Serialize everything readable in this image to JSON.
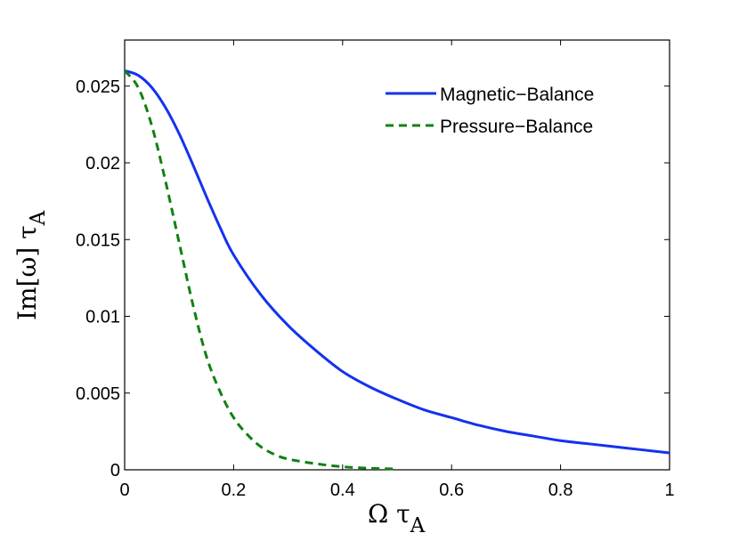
{
  "chart_data": {
    "type": "line",
    "title": "",
    "xlabel": "Ω τ",
    "xlabel_sub": "A",
    "ylabel": "Im[ω]  τ",
    "ylabel_sub": "A",
    "xlim": [
      0,
      1
    ],
    "ylim": [
      0,
      0.028
    ],
    "xticks": [
      0,
      0.2,
      0.4,
      0.6,
      0.8,
      1
    ],
    "xtick_labels": [
      "0",
      "0.2",
      "0.4",
      "0.6",
      "0.8",
      "1"
    ],
    "yticks": [
      0,
      0.005,
      0.01,
      0.015,
      0.02,
      0.025
    ],
    "ytick_labels": [
      "0",
      "0.005",
      "0.01",
      "0.015",
      "0.02",
      "0.025"
    ],
    "grid": false,
    "legend_position": "top-right",
    "series": [
      {
        "name": "Magnetic−Balance",
        "color": "#1432ee",
        "style": "solid",
        "x": [
          0,
          0.025,
          0.05,
          0.075,
          0.1,
          0.125,
          0.15,
          0.175,
          0.2,
          0.25,
          0.3,
          0.35,
          0.4,
          0.45,
          0.5,
          0.55,
          0.6,
          0.65,
          0.7,
          0.75,
          0.8,
          0.85,
          0.9,
          0.95,
          1.0
        ],
        "y": [
          0.026,
          0.0257,
          0.0249,
          0.0236,
          0.0219,
          0.0199,
          0.0178,
          0.0158,
          0.014,
          0.0114,
          0.0094,
          0.0078,
          0.0064,
          0.0054,
          0.0046,
          0.0039,
          0.0034,
          0.0029,
          0.0025,
          0.0022,
          0.0019,
          0.0017,
          0.0015,
          0.0013,
          0.0011
        ]
      },
      {
        "name": "Pressure−Balance",
        "color": "#128012",
        "style": "dashed",
        "x": [
          0,
          0.025,
          0.05,
          0.075,
          0.1,
          0.125,
          0.15,
          0.175,
          0.2,
          0.225,
          0.25,
          0.275,
          0.3,
          0.35,
          0.4,
          0.45,
          0.5
        ],
        "y": [
          0.026,
          0.0249,
          0.0224,
          0.0188,
          0.0148,
          0.0108,
          0.0074,
          0.0051,
          0.0034,
          0.0023,
          0.0015,
          0.001,
          0.0007,
          0.0004,
          0.0002,
          0.0001,
          5e-05
        ]
      }
    ]
  }
}
